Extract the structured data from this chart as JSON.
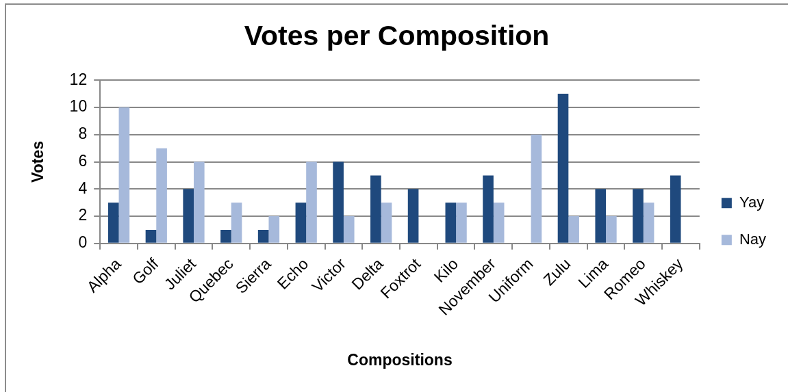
{
  "chart_data": {
    "type": "bar",
    "title": "Votes per Composition",
    "xlabel": "Compositions",
    "ylabel": "Votes",
    "categories": [
      "Alpha",
      "Golf",
      "Juliet",
      "Quebec",
      "Sierra",
      "Echo",
      "Victor",
      "Delta",
      "Foxtrot",
      "Kilo",
      "November",
      "Uniform",
      "Zulu",
      "Lima",
      "Romeo",
      "Whiskey"
    ],
    "series": [
      {
        "name": "Yay",
        "color": "#1f497d",
        "values": [
          3,
          1,
          4,
          1,
          1,
          3,
          6,
          5,
          4,
          3,
          5,
          null,
          11,
          4,
          4,
          5
        ]
      },
      {
        "name": "Nay",
        "color": "#a6b9db",
        "values": [
          10,
          7,
          6,
          3,
          2,
          6,
          2,
          3,
          null,
          3,
          3,
          8,
          2,
          2,
          3,
          null
        ]
      }
    ],
    "ylim": [
      0,
      12
    ],
    "yticks": [
      0,
      2,
      4,
      6,
      8,
      10,
      12
    ],
    "grid": "y",
    "legend": "right"
  }
}
